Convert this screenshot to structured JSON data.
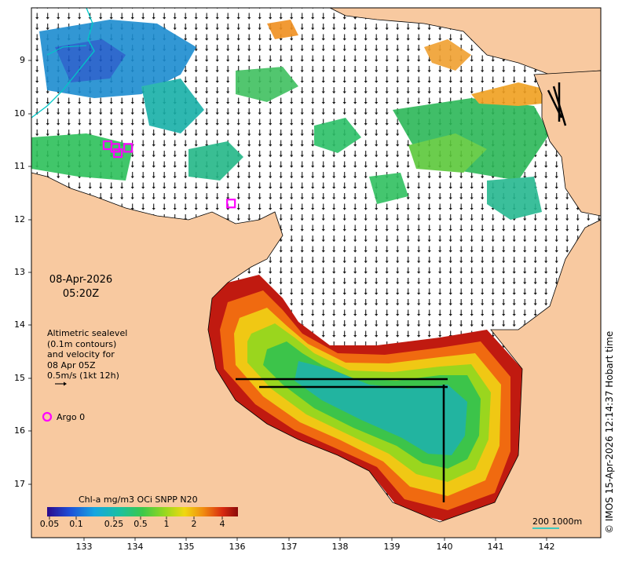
{
  "map": {
    "date_line1": "08-Apr-2026",
    "date_line2": "05:20Z",
    "info_lines": [
      "Altimetric sealevel",
      "(0.1m contours)",
      "and velocity for",
      "08 Apr 05Z",
      "0.5m/s (1kt 12h)"
    ],
    "argo_label": "Argo 0",
    "credit": "© IMOS 15-Apr-2026 12:14:37 Hobart time",
    "colorbar_title": "Chl-a mg/m3 OCi SNPP N20",
    "colorbar_ticks": [
      "0.05",
      "0.1",
      "0.25",
      "0.5",
      "1",
      "2",
      "4"
    ],
    "scale_label": "200  1000m",
    "lat_ticks": [
      "9",
      "10",
      "11",
      "12",
      "13",
      "14",
      "15",
      "16",
      "17"
    ],
    "lon_ticks": [
      "133",
      "134",
      "135",
      "136",
      "137",
      "138",
      "139",
      "140",
      "141",
      "142"
    ],
    "colors": {
      "land": "#f8c9a0",
      "ocean": "#ffffff",
      "argo": "#ff00ff",
      "isobath": "#00c8c8"
    },
    "argo_floats": [
      {
        "lon": 133.45,
        "lat": -10.6
      },
      {
        "lon": 133.6,
        "lat": -10.65
      },
      {
        "lon": 133.65,
        "lat": -10.75
      },
      {
        "lon": 133.85,
        "lat": -10.65
      },
      {
        "lon": 135.85,
        "lat": -11.7
      }
    ]
  }
}
